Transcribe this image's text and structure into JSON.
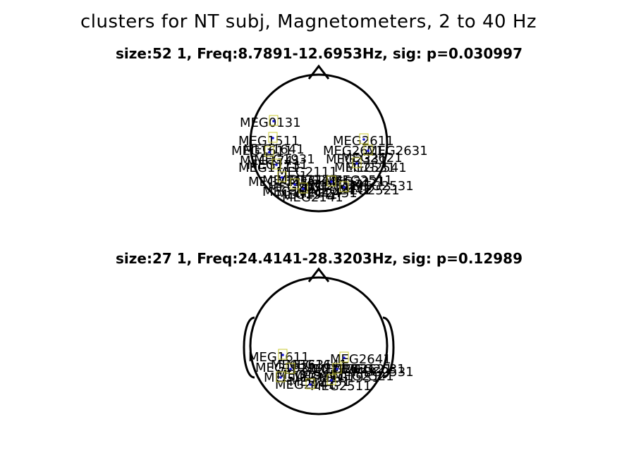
{
  "figure": {
    "title": "clusters for NT subj, Magnetometers, 2 to 40 Hz"
  },
  "panels": [
    {
      "subtitle": "size:52    1, Freq:8.7891-12.6953Hz, sig: p=0.030997",
      "sensor_labels": [
        "MEG0131",
        "MEG1511",
        "MEG2611",
        "MEG1611",
        "MEG2621",
        "MEG1641",
        "MEG2631",
        "MEG1711",
        "MEG2531",
        "MEG1731",
        "MEG2541",
        "MEG2121",
        "MEG2131",
        "MEG2141",
        "MEG2151",
        "MEG1921",
        "MEG2321",
        "MEG1941",
        "MEG2511",
        "MEG2431",
        "MEG2441",
        "MEG2521",
        "MEG2531",
        "MEG2621",
        "MEG1931",
        "MEG2331",
        "MEG2111",
        "MEG2341",
        "MEG1741",
        "MEG2141",
        "MEG2041",
        "MEG2031"
      ]
    },
    {
      "subtitle": "size:27    1, Freq:24.4141-28.3203Hz, sig: p=0.12989",
      "sensor_labels": [
        "MEG1611",
        "MEG2641",
        "MEG1621",
        "MEG2631",
        "MEG1631",
        "MEG2621",
        "MEG1641",
        "MEG1731",
        "MEG2521",
        "MEG1941",
        "MEG2531",
        "MEG1911",
        "MEG2511",
        "MEG2121",
        "MEG2131",
        "MEG2141",
        "MEG1931",
        "MEG2331"
      ]
    }
  ],
  "colors": {
    "outline": "#000000",
    "sensor_dot": "#1a1adc",
    "sensor_box": "#c8c832"
  }
}
